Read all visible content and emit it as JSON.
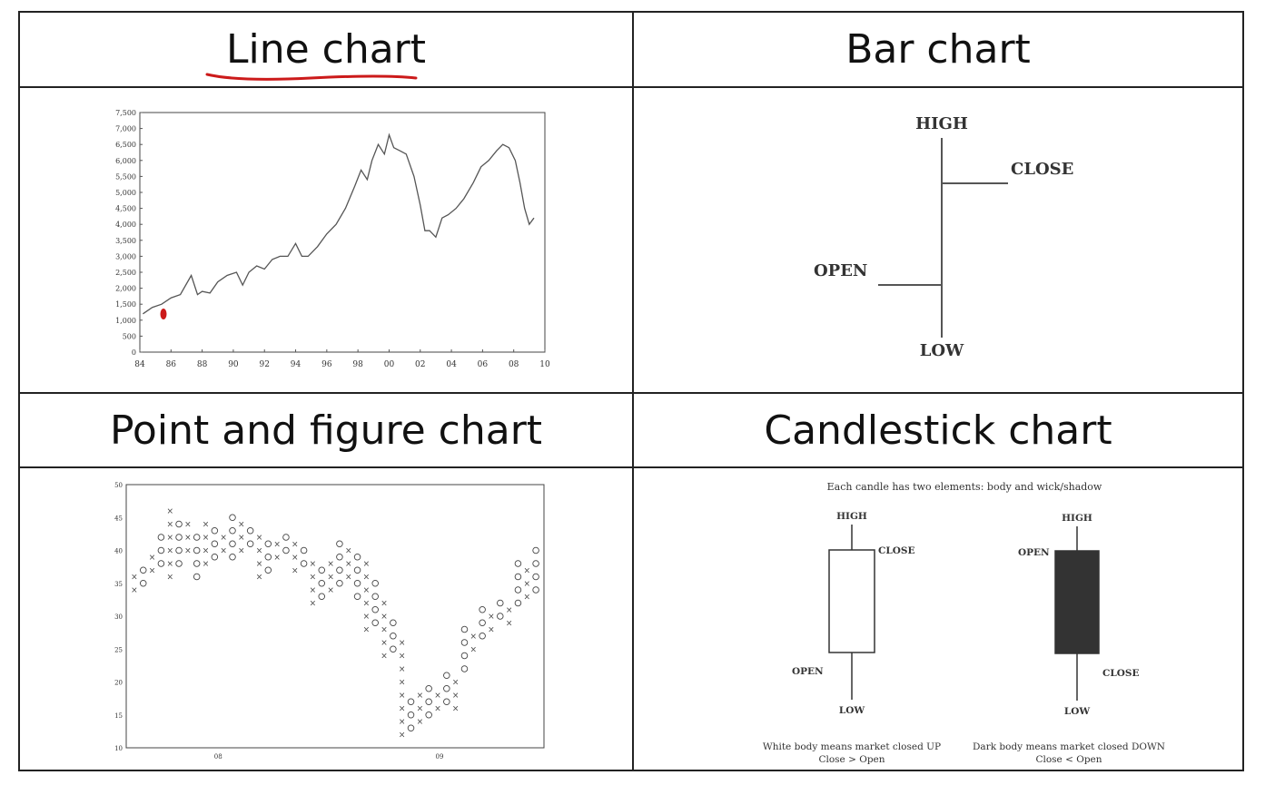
{
  "headers": {
    "line_chart": "Line chart",
    "bar_chart": "Bar chart",
    "pf_chart": "Point and figure chart",
    "candle_chart": "Candlestick chart"
  },
  "colors": {
    "border": "#222222",
    "annotation_red": "#cc1a1a",
    "line": "#555555",
    "candle_dark": "#333333"
  },
  "line_chart": {
    "y_ticks": [
      "0",
      "500",
      "1,000",
      "1,500",
      "2,000",
      "2,500",
      "3,000",
      "3,500",
      "4,000",
      "4,500",
      "5,000",
      "5,500",
      "6,000",
      "6,500",
      "7,000",
      "7,500"
    ],
    "x_ticks": [
      "84",
      "86",
      "88",
      "90",
      "92",
      "94",
      "96",
      "98",
      "00",
      "02",
      "04",
      "06",
      "08",
      "10"
    ],
    "ylim": [
      0,
      7500
    ],
    "xlim": [
      84,
      110
    ]
  },
  "bar_chart": {
    "high": "HIGH",
    "close": "CLOSE",
    "open": "OPEN",
    "low": "LOW"
  },
  "pf_chart": {
    "y_ticks": [
      "10",
      "15",
      "20",
      "25",
      "30",
      "35",
      "40",
      "45",
      "50"
    ],
    "x_ticks": [
      "08",
      "09"
    ],
    "ylim": [
      10,
      50
    ]
  },
  "candle_chart": {
    "title": "Each candle has two elements: body and wick/shadow",
    "white": {
      "high": "HIGH",
      "close": "CLOSE",
      "open": "OPEN",
      "low": "LOW",
      "caption1": "White body means market closed UP",
      "caption2": "Close > Open"
    },
    "dark": {
      "high": "HIGH",
      "open": "OPEN",
      "close": "CLOSE",
      "low": "LOW",
      "caption1": "Dark body means market closed DOWN",
      "caption2": "Close < Open"
    }
  },
  "chart_data": {
    "type": "line",
    "x": [
      84.2,
      84.8,
      85.4,
      86.0,
      86.6,
      87.3,
      87.7,
      88.0,
      88.5,
      89.0,
      89.6,
      90.2,
      90.6,
      91.0,
      91.5,
      92.0,
      92.5,
      93.0,
      93.5,
      94.0,
      94.4,
      94.8,
      95.4,
      96.0,
      96.6,
      97.2,
      97.8,
      98.2,
      98.6,
      98.9,
      99.3,
      99.7,
      100.0,
      100.3,
      100.7,
      101.1,
      101.6,
      102.0,
      102.3,
      102.6,
      103.0,
      103.4,
      103.8,
      104.3,
      104.8,
      105.4,
      105.9,
      106.4,
      106.9,
      107.3,
      107.7,
      108.1,
      108.4,
      108.7,
      109.0,
      109.3
    ],
    "y": [
      1200,
      1400,
      1500,
      1700,
      1800,
      2400,
      1800,
      1900,
      1850,
      2200,
      2400,
      2500,
      2100,
      2500,
      2700,
      2600,
      2900,
      3000,
      3000,
      3400,
      3000,
      3000,
      3300,
      3700,
      4000,
      4500,
      5200,
      5700,
      5400,
      6000,
      6500,
      6200,
      6800,
      6400,
      6300,
      6200,
      5500,
      4600,
      3800,
      3800,
      3600,
      4200,
      4300,
      4500,
      4800,
      5300,
      5800,
      6000,
      6300,
      6500,
      6400,
      6000,
      5300,
      4500,
      4000,
      4200
    ],
    "xlim": [
      84,
      110
    ],
    "ylim": [
      0,
      7500
    ]
  }
}
